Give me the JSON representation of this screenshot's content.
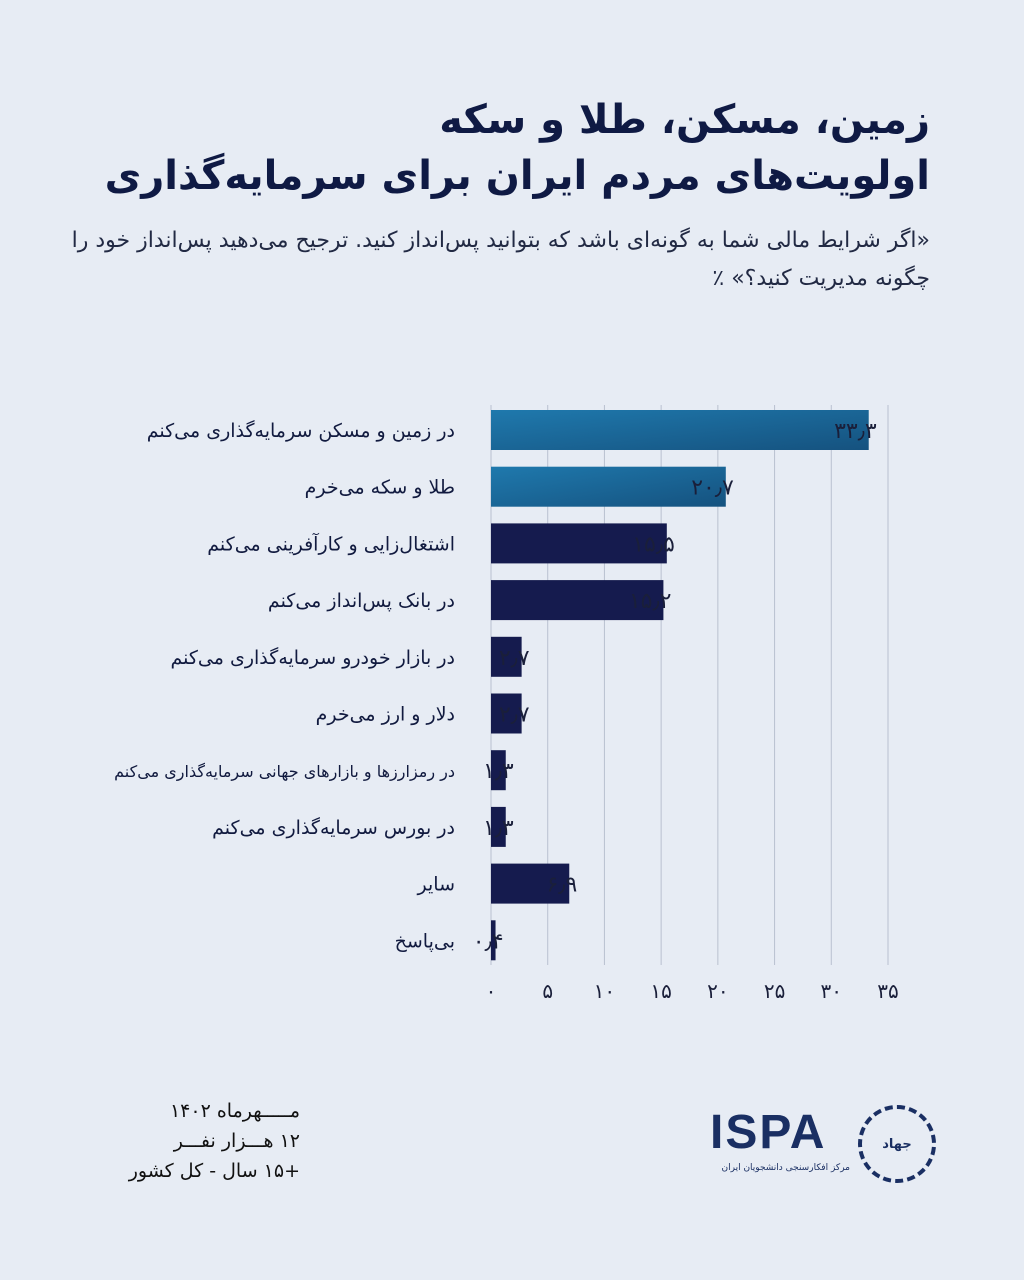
{
  "title_lines": [
    "زمین، مسکن، طلا و سکه",
    "اولویت‌های مردم ایران برای سرمایه‌گذاری"
  ],
  "subtitle": "«اگر شرایط مالی شما به گونه‌ای باشد که بتوانید پس‌انداز کنید. ترجیح می‌دهید پس‌انداز خود را چگونه مدیریت کنید؟» ٪",
  "chart_data": {
    "type": "bar",
    "orientation": "horizontal",
    "categories": [
      "در زمین و مسکن سرمایه‌گذاری می‌کنم",
      "طلا و سکه می‌خرم",
      "اشتغال‌زایی و کارآفرینی می‌کنم",
      "در بانک پس‌انداز می‌کنم",
      "در بازار خودرو سرمایه‌گذاری می‌کنم",
      "دلار و ارز می‌خرم",
      "در رمزارزها و بازارهای جهانی سرمایه‌گذاری می‌کنم",
      "در بورس سرمایه‌گذاری می‌کنم",
      "سایر",
      "بی‌پاسخ"
    ],
    "values": [
      33.3,
      20.7,
      15.5,
      15.2,
      2.7,
      2.7,
      1.3,
      1.3,
      6.9,
      0.4
    ],
    "value_labels": [
      "۳۳٫۳",
      "۲۰٫۷",
      "۱۵٫۵",
      "۱۵٫۲",
      "۲٫۷",
      "۲٫۷",
      "۱٫۳",
      "۱٫۳",
      "۶٫۹",
      "۰٫۴"
    ],
    "xlim": [
      0,
      35
    ],
    "ticks": [
      0,
      5,
      10,
      15,
      20,
      25,
      30,
      35
    ],
    "tick_labels": [
      "۰",
      "۵",
      "۱۰",
      "۱۵",
      "۲۰",
      "۲۵",
      "۳۰",
      "۳۵"
    ],
    "grid": true,
    "colors": {
      "highlight": "#1b6597",
      "default": "#151b4e"
    },
    "highlight_count": 2
  },
  "footer": {
    "lines": [
      "مـــــهرماه ۱۴۰۲",
      "۱۲ هـــزار نفـــر",
      "+۱۵ سال - کل کشور"
    ]
  },
  "logo": {
    "name": "ISPA",
    "subtitle": "مرکز افکارسنجی دانشجویان ایران",
    "seal": "جهاد دانشگاهی"
  }
}
